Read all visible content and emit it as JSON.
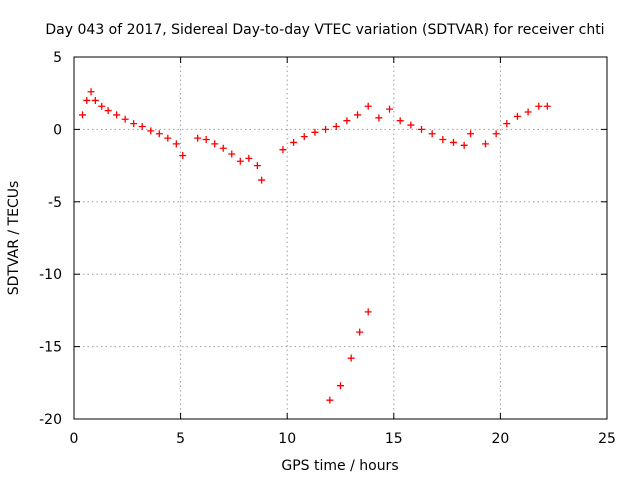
{
  "chart_data": {
    "type": "scatter",
    "title": "Day 043 of 2017, Sidereal Day-to-day VTEC variation (SDTVAR) for receiver chti",
    "xlabel": "GPS time / hours",
    "ylabel": "SDTVAR / TECUs",
    "xlim": [
      0,
      25
    ],
    "ylim": [
      -20,
      5
    ],
    "xticks": [
      "0",
      "5",
      "10",
      "15",
      "20",
      "25"
    ],
    "yticks": [
      "5",
      "0",
      "-5",
      "-10",
      "-15",
      "-20"
    ],
    "grid": true,
    "marker": "plus",
    "color": "#ff0000",
    "series": [
      {
        "name": "SDTVAR",
        "x": [
          0.4,
          0.6,
          0.8,
          1.0,
          1.3,
          1.6,
          2.0,
          2.4,
          2.8,
          3.2,
          3.6,
          4.0,
          4.4,
          4.8,
          5.1,
          5.8,
          6.2,
          6.6,
          7.0,
          7.4,
          7.8,
          8.2,
          8.6,
          8.8,
          9.8,
          10.3,
          10.8,
          11.3,
          11.8,
          12.3,
          12.8,
          13.3,
          13.8,
          14.3,
          14.8,
          15.3,
          15.8,
          16.3,
          16.8,
          17.3,
          17.8,
          18.3,
          18.6,
          19.3,
          19.8,
          20.3,
          20.8,
          21.3,
          21.8,
          22.2,
          12.0,
          12.5,
          13.0,
          13.4,
          13.8
        ],
        "y": [
          1.0,
          2.0,
          2.6,
          2.0,
          1.6,
          1.3,
          1.0,
          0.7,
          0.4,
          0.2,
          -0.1,
          -0.3,
          -0.6,
          -1.0,
          -1.8,
          -0.6,
          -0.7,
          -1.0,
          -1.3,
          -1.7,
          -2.2,
          -2.0,
          -2.5,
          -3.5,
          -1.4,
          -0.9,
          -0.5,
          -0.2,
          0.0,
          0.2,
          0.6,
          1.0,
          1.6,
          0.8,
          1.4,
          0.6,
          0.3,
          0.0,
          -0.3,
          -0.7,
          -0.9,
          -1.1,
          -0.3,
          -1.0,
          -0.3,
          0.4,
          0.9,
          1.2,
          1.6,
          1.6,
          -18.7,
          -17.7,
          -15.8,
          -14.0,
          -12.6
        ]
      }
    ]
  }
}
